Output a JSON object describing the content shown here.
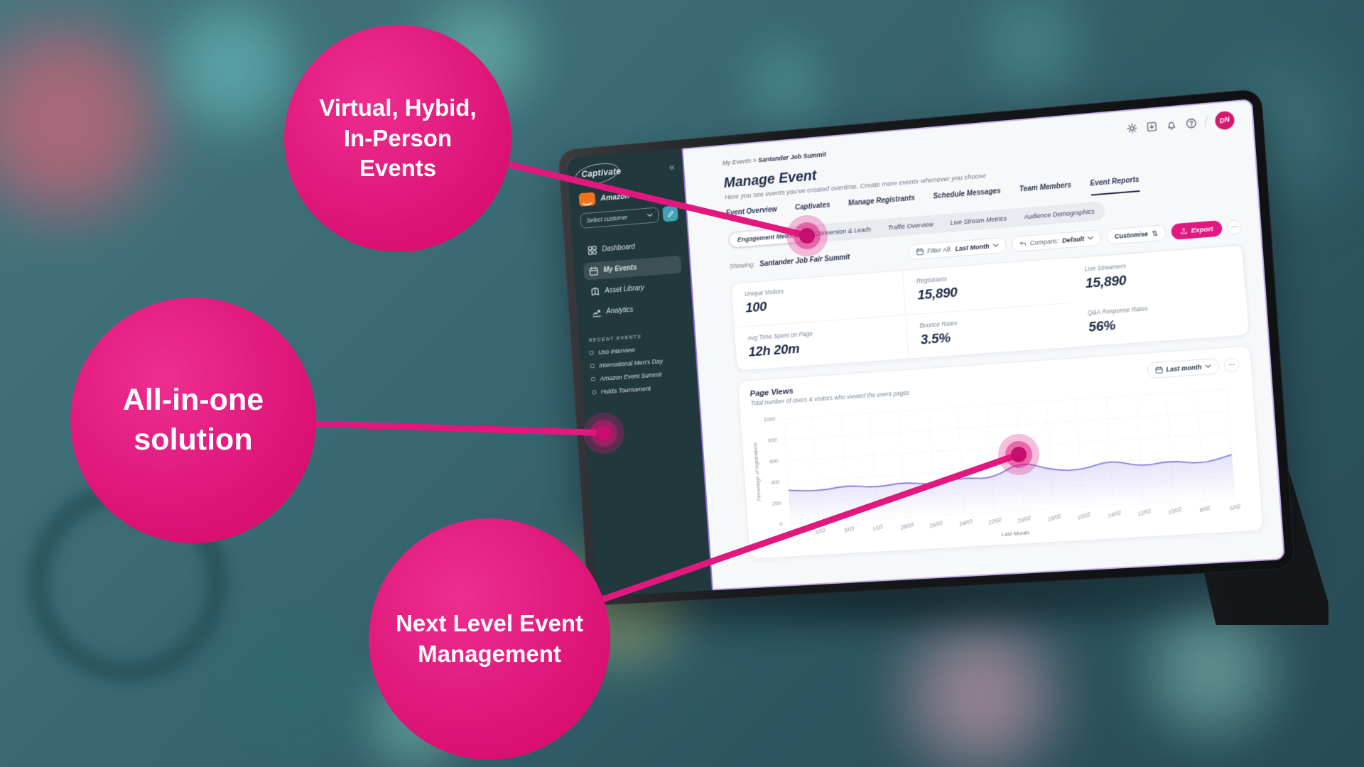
{
  "callouts": {
    "c1": "Virtual, Hybid,\nIn-Person\nEvents",
    "c2": "All-in-one\nsolution",
    "c3": "Next Level Event\nManagement"
  },
  "sidebar": {
    "brand": "Captivate",
    "collapse_icon": "«",
    "customer_name": "Amazon",
    "customer_select": "Select customer",
    "nav": [
      {
        "label": "Dashboard",
        "active": false
      },
      {
        "label": "My Events",
        "active": true
      },
      {
        "label": "Asset Library",
        "active": false
      },
      {
        "label": "Analytics",
        "active": false
      }
    ],
    "recent_header": "RECENT EVENTS",
    "recent": [
      "Uso Interview",
      "International Men's Day",
      "Amazon Event Summit",
      "Hulda Tournament"
    ]
  },
  "topbar": {
    "avatar_initials": "DN"
  },
  "header": {
    "breadcrumb_root": "My Events",
    "breadcrumb_sep": ">",
    "breadcrumb_current": "Santander Job Summit",
    "title": "Manage Event",
    "subtitle": "Here you see events you've created overtime. Create more events whenever you choose"
  },
  "tabs": [
    {
      "label": "Event Overview",
      "active": false
    },
    {
      "label": "Captivates",
      "active": false
    },
    {
      "label": "Manage Registrants",
      "active": false
    },
    {
      "label": "Schedule Messages",
      "active": false
    },
    {
      "label": "Team Members",
      "active": false
    },
    {
      "label": "Event Reports",
      "active": true
    }
  ],
  "subtabs": [
    {
      "label": "Engagement Metrics",
      "active": true
    },
    {
      "label": "Conversion & Leads",
      "active": false
    },
    {
      "label": "Traffic Overview",
      "active": false
    },
    {
      "label": "Live Stream Metrics",
      "active": false
    },
    {
      "label": "Audience Demographics",
      "active": false
    }
  ],
  "toolbar": {
    "showing_label": "Showing:",
    "showing_value": "Santander Job Fair Summit",
    "filter_label": "Filter All:",
    "filter_value": "Last Month",
    "compare_label": "Compare:",
    "compare_value": "Default",
    "customise_label": "Customise",
    "export_label": "Export",
    "more_label": "⋯"
  },
  "metrics": [
    {
      "label": "Unique Visitors",
      "value": "100"
    },
    {
      "label": "Registrants",
      "value": "15,890"
    },
    {
      "label": "Live Streamers",
      "value": "15,890"
    },
    {
      "label": "Avg Time Spent on Page",
      "value": "12h 20m"
    },
    {
      "label": "Bounce Rates",
      "value": "3.5%"
    },
    {
      "label": "Q&A Response Rates",
      "value": "56%"
    }
  ],
  "page_views": {
    "title": "Page Views",
    "subtitle": "Total number of users & visitors who viewed the event pages",
    "period": "Last month",
    "more_label": "⋯"
  },
  "chart_data": {
    "type": "line",
    "title": "Page Views",
    "x_labels": [
      "7/03",
      "5/03",
      "3/03",
      "1/03",
      "28/03",
      "26/03",
      "24/03",
      "22/02",
      "20/02",
      "18/02",
      "16/02",
      "14/02",
      "12/02",
      "10/02",
      "8/02",
      "6/02"
    ],
    "values": [
      320,
      290,
      335,
      295,
      330,
      290,
      340,
      310,
      460,
      360,
      340,
      420,
      340,
      380,
      330,
      400
    ],
    "yticks": [
      0,
      200,
      400,
      600,
      800,
      1000
    ],
    "ylim": [
      0,
      1000
    ],
    "xlabel": "Last Month",
    "ylabel": "Percentage of registrations",
    "line_color": "#7b6fe0",
    "grid": true,
    "legend": false
  }
}
